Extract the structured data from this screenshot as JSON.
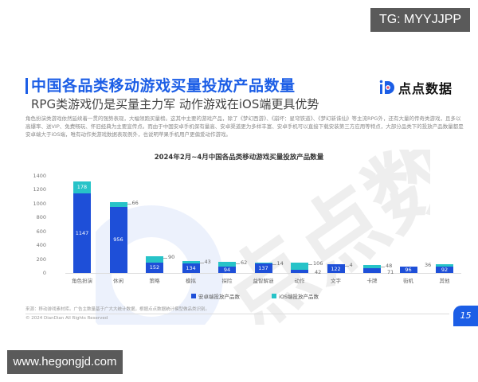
{
  "overlay": {
    "top_tag": "TG: MYYJJPP",
    "bottom_tag": "www.hegongjd.com"
  },
  "slide": {
    "title": "中国各品类移动游戏买量投放产品数量",
    "subtitle": "RPG类游戏仍是买量主力军 动作游戏在iOS端更具优势",
    "logo_text": "点点数据",
    "description": "角色扮演类游戏依然延续着一贯的强势表现，大幅领跑买量榜。这其中主要的游戏产品，除了《梦幻西游》、《崩坏：星穹铁道》、《梦幻新诛仙》等主流RPG外，还有大量的传奇类游戏，且多以高爆率、送VIP、免费畅玩、怀旧经典为主要宣传点。而由于中国安卓手机保有量高、安卓渠道更为多样丰富、安卓手机可以直接下载安装第三方应用等特点，大部分品类下的投放产品数量都是安卓端大于iOS端，唯有动作类游戏数据表现例外，也说明苹果手机用户更偏爱动作游戏。",
    "source": "来源：移动游戏素材库。广告主数量基于广大大统计数据，根据点点数据统计模型做品类识别。",
    "copyright": "© 2024 DianDian All Rights Reserved",
    "page_number": "15"
  },
  "legend": {
    "android": "安卓端投放产品数",
    "ios": "iOS端投放产品数"
  },
  "colors": {
    "brand": "#1c5ee6",
    "android": "#1e4fd8",
    "ios": "#27c3c8"
  },
  "chart_data": {
    "type": "bar",
    "stacked": true,
    "title": "2024年2月~4月中国各品类移动游戏买量投放产品数量",
    "categories": [
      "角色扮演",
      "休闲",
      "策略",
      "模拟",
      "探险",
      "益智解谜",
      "动作",
      "文字",
      "卡牌",
      "街机",
      "其他"
    ],
    "series": [
      {
        "name": "安卓端投放产品数",
        "values": [
          1147,
          956,
          152,
          134,
          94,
          137,
          42,
          122,
          71,
          96,
          92
        ]
      },
      {
        "name": "iOS端投放产品数",
        "values": [
          178,
          66,
          90,
          43,
          62,
          14,
          106,
          4,
          48,
          0,
          36
        ]
      }
    ],
    "yticks": [
      0,
      200,
      400,
      600,
      800,
      1000,
      1200,
      1400
    ],
    "ylim": [
      0,
      1400
    ],
    "xlabel": "",
    "ylabel": "",
    "legend_position": "bottom",
    "grid": false
  }
}
